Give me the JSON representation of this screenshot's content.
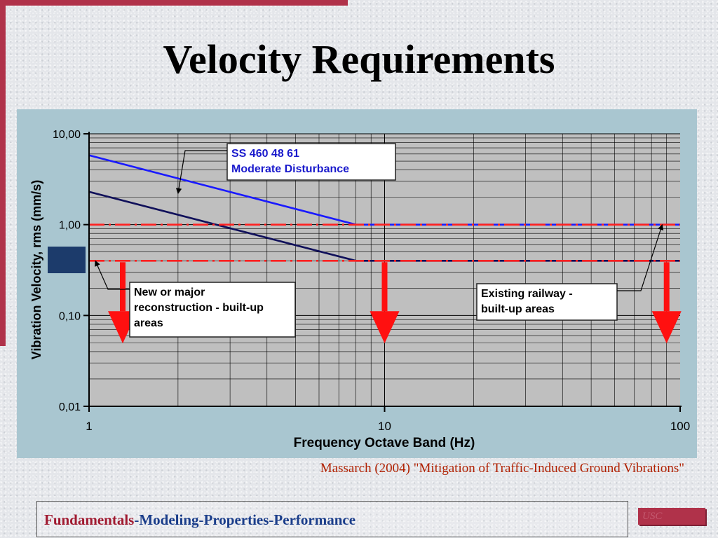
{
  "slide": {
    "title": "Velocity Requirements",
    "citation": "Massarch (2004) \"Mitigation of Traffic-Induced Ground Vibrations\"",
    "footer_part1": "Fundamentals",
    "footer_part2": "-Modeling-Properties-Performance",
    "badge": "USC",
    "accent_color": "#b0324a"
  },
  "chart_data": {
    "type": "line",
    "xlabel": "Frequency Octave Band (Hz)",
    "ylabel": "Vibration Velocity, rms (mm/s)",
    "xscale": "log",
    "yscale": "log",
    "xlim": [
      1,
      100
    ],
    "ylim": [
      0.01,
      10
    ],
    "grid": true,
    "x_ticks": [
      {
        "value": 1,
        "label": "1"
      },
      {
        "value": 10,
        "label": "10"
      },
      {
        "value": 100,
        "label": "100"
      }
    ],
    "y_ticks": [
      {
        "value": 10,
        "label": "10,00"
      },
      {
        "value": 1,
        "label": "1,00"
      },
      {
        "value": 0.1,
        "label": "0,10"
      },
      {
        "value": 0.01,
        "label": "0,01"
      }
    ],
    "series": [
      {
        "color": "#1a1aff",
        "style": "solid",
        "x": [
          1,
          8,
          100
        ],
        "y": [
          5.8,
          1.0,
          1.0
        ]
      },
      {
        "color": "#10105a",
        "style": "solid",
        "x": [
          1,
          8,
          100
        ],
        "y": [
          2.3,
          0.4,
          0.4
        ]
      },
      {
        "color": "#ff2020",
        "style": "dash-dot",
        "x": [
          1,
          100
        ],
        "y": [
          1.0,
          1.0
        ]
      },
      {
        "color": "#ff2020",
        "style": "dash-dot",
        "x": [
          1,
          100
        ],
        "y": [
          0.4,
          0.4
        ]
      }
    ],
    "annotations": [
      {
        "text": [
          "SS 460 48 61",
          "Moderate Disturbance"
        ],
        "color": "#1a1acc",
        "points_to": {
          "x": 2.0,
          "y": 2.2
        }
      },
      {
        "text": [
          "New or major",
          "reconstruction - built-up",
          "areas"
        ],
        "color": "#000000",
        "points_to": {
          "x": 1.05,
          "y": 0.4
        }
      },
      {
        "text": [
          "Existing railway -",
          "built-up areas"
        ],
        "color": "#000000",
        "points_to": {
          "x": 87,
          "y": 1.0
        }
      }
    ],
    "down_arrows_at_x": [
      1.3,
      10,
      90
    ]
  }
}
